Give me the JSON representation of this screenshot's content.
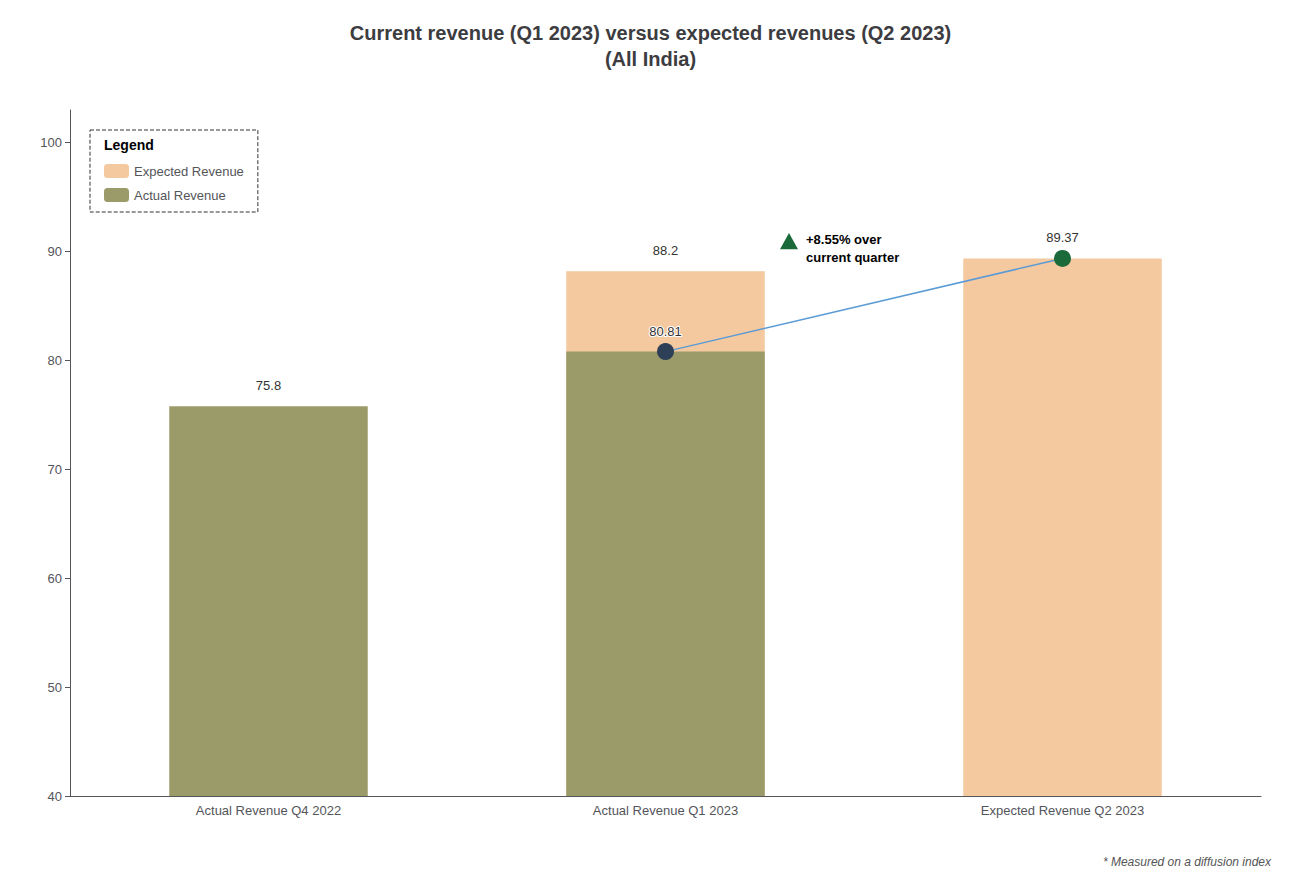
{
  "chart_data": {
    "type": "bar",
    "title": "Current revenue (Q1 2023) versus expected revenues (Q2 2023)\n(All India)",
    "categories": [
      "Actual Revenue Q4 2022",
      "Actual Revenue Q1 2023",
      "Expected Revenue Q2 2023"
    ],
    "series": [
      {
        "name": "Expected Revenue",
        "color": "#F5C9A0",
        "values": [
          null,
          88.2,
          89.37
        ]
      },
      {
        "name": "Actual Revenue",
        "color": "#9B9B6A",
        "values": [
          75.8,
          80.81,
          null
        ]
      },
      {
        "type": "line",
        "color": "#5B9BD5",
        "colors": [
          null,
          "#2E4057",
          "#1B6B3A"
        ],
        "marker": "circle",
        "values": [
          null,
          80.81,
          89.37
        ]
      }
    ],
    "ylim": [
      40,
      103
    ],
    "yticks": [
      40,
      50,
      60,
      70,
      80,
      90,
      100
    ],
    "grid": false,
    "legend": "upper left",
    "legend_title": "Legend",
    "data_labels": true,
    "annotations": [
      {
        "text": "+8.55% over\ncurrent quarter",
        "marker": "triangle",
        "color": "#1B6B3A"
      }
    ],
    "footnote": "* Measured on a diffusion index"
  }
}
